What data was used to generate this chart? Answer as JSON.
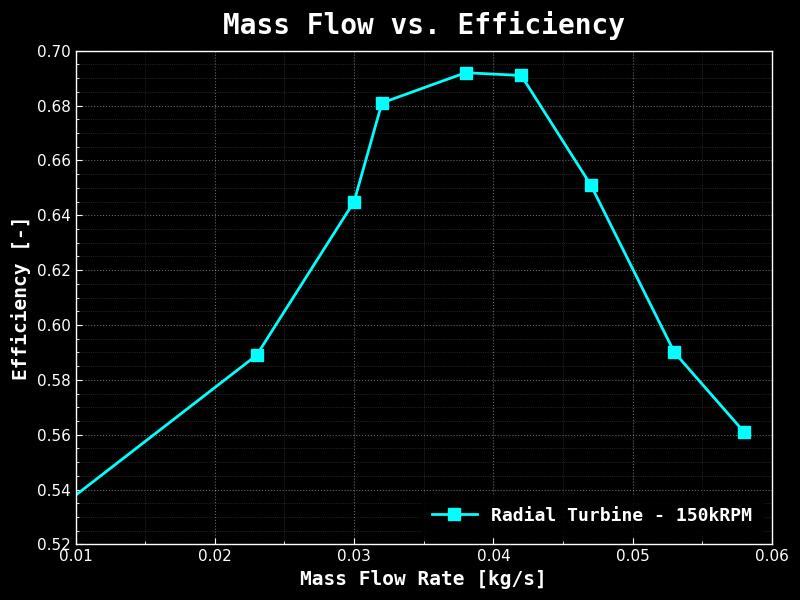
{
  "x": [
    0.009,
    0.023,
    0.03,
    0.032,
    0.038,
    0.042,
    0.047,
    0.053,
    0.058
  ],
  "y": [
    0.534,
    0.589,
    0.645,
    0.681,
    0.692,
    0.691,
    0.651,
    0.59,
    0.561
  ],
  "title": "Mass Flow vs. Efficiency",
  "xlabel": "Mass Flow Rate [kg/s]",
  "ylabel": "Efficiency [-]",
  "xlim": [
    0.01,
    0.06
  ],
  "ylim": [
    0.52,
    0.7
  ],
  "xticks_major": [
    0.01,
    0.02,
    0.03,
    0.04,
    0.05,
    0.06
  ],
  "yticks_major": [
    0.52,
    0.54,
    0.56,
    0.58,
    0.6,
    0.62,
    0.64,
    0.66,
    0.68,
    0.7
  ],
  "line_color": "#00FFFF",
  "marker": "s",
  "marker_size": 8,
  "line_width": 2,
  "legend_label": "Radial Turbine - 150kRPM",
  "bg_color": "#000000",
  "axes_color": "#000000",
  "text_color": "#FFFFFF",
  "grid_color": "#FFFFFF",
  "title_fontsize": 20,
  "label_fontsize": 14,
  "tick_fontsize": 11,
  "legend_fontsize": 13
}
